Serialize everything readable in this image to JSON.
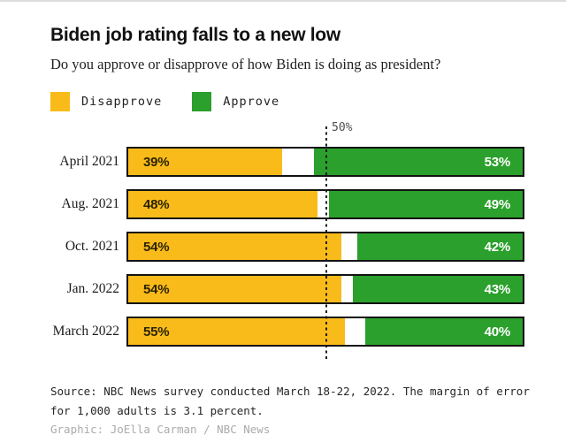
{
  "page": {
    "title": "Biden job rating falls to a new low",
    "subtitle": "Do you approve or disapprove of how Biden is doing as president?"
  },
  "legend": {
    "items": [
      {
        "label": "Disapprove",
        "color": "#F9BB19"
      },
      {
        "label": "Approve",
        "color": "#2BA02C"
      }
    ]
  },
  "chart_data": {
    "type": "bar",
    "orientation": "horizontal_stacked",
    "title": "Biden job rating falls to a new low",
    "question": "Do you approve or disapprove of how Biden is doing as president?",
    "xlim": [
      0,
      100
    ],
    "unit": "percent",
    "reference_line": {
      "value": 50,
      "label": "50%"
    },
    "categories": [
      "April 2021",
      "Aug. 2021",
      "Oct. 2021",
      "Jan. 2022",
      "March 2022"
    ],
    "series": [
      {
        "name": "Disapprove",
        "color": "#F9BB19",
        "values": [
          39,
          48,
          54,
          54,
          55
        ]
      },
      {
        "name": "Approve",
        "color": "#2BA02C",
        "values": [
          53,
          49,
          42,
          43,
          40
        ]
      }
    ],
    "rows": [
      {
        "label": "April 2021",
        "disapprove": 39,
        "approve": 53,
        "disapprove_label": "39%",
        "approve_label": "53%"
      },
      {
        "label": "Aug. 2021",
        "disapprove": 48,
        "approve": 49,
        "disapprove_label": "48%",
        "approve_label": "49%"
      },
      {
        "label": "Oct. 2021",
        "disapprove": 54,
        "approve": 42,
        "disapprove_label": "54%",
        "approve_label": "42%"
      },
      {
        "label": "Jan. 2022",
        "disapprove": 54,
        "approve": 43,
        "disapprove_label": "54%",
        "approve_label": "43%"
      },
      {
        "label": "March 2022",
        "disapprove": 55,
        "approve": 40,
        "disapprove_label": "55%",
        "approve_label": "40%"
      }
    ]
  },
  "footer": {
    "source": "Source: NBC News survey conducted March 18-22, 2022. The margin of error for 1,000 adults is 3.1 percent.",
    "credit": "Graphic: JoElla Carman / NBC News"
  }
}
